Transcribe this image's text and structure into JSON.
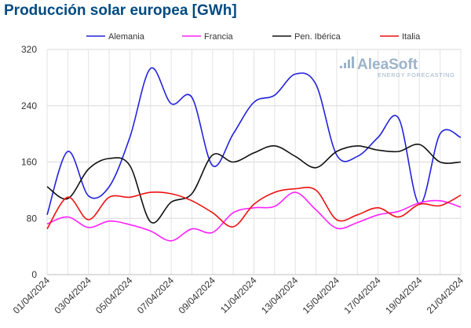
{
  "chart_data": {
    "type": "line",
    "title": "Producción solar europea [GWh]",
    "xlabel": "",
    "ylabel": "",
    "ylim": [
      0,
      320
    ],
    "yticks": [
      0,
      80,
      160,
      240,
      320
    ],
    "grid": true,
    "legend_position": "top",
    "x": [
      "01/04/2024",
      "02/04/2024",
      "03/04/2024",
      "04/04/2024",
      "05/04/2024",
      "06/04/2024",
      "07/04/2024",
      "08/04/2024",
      "09/04/2024",
      "10/04/2024",
      "11/04/2024",
      "12/04/2024",
      "13/04/2024",
      "14/04/2024",
      "15/04/2024",
      "16/04/2024",
      "17/04/2024",
      "18/04/2024",
      "19/04/2024",
      "20/04/2024",
      "21/04/2024"
    ],
    "xtick_labels": [
      "01/04/2024",
      "03/04/2024",
      "05/04/2024",
      "07/04/2024",
      "09/04/2024",
      "11/04/2024",
      "13/04/2024",
      "15/04/2024",
      "17/04/2024",
      "19/04/2024",
      "21/04/2024"
    ],
    "series": [
      {
        "name": "Alemania",
        "color": "#2222dd",
        "values": [
          85,
          175,
          112,
          125,
          195,
          293,
          243,
          252,
          155,
          200,
          245,
          255,
          285,
          270,
          170,
          168,
          195,
          222,
          100,
          200,
          195
        ]
      },
      {
        "name": "Francia",
        "color": "#ff22ff",
        "values": [
          72,
          82,
          67,
          76,
          71,
          62,
          48,
          65,
          60,
          88,
          95,
          97,
          117,
          92,
          66,
          74,
          85,
          90,
          102,
          105,
          96
        ]
      },
      {
        "name": "Pen. Ibérica",
        "color": "#111111",
        "values": [
          125,
          108,
          150,
          165,
          155,
          75,
          103,
          115,
          170,
          160,
          173,
          183,
          168,
          152,
          175,
          183,
          177,
          175,
          185,
          160,
          160
        ]
      },
      {
        "name": "Italia",
        "color": "#ee1111",
        "values": [
          65,
          110,
          78,
          110,
          110,
          117,
          115,
          105,
          88,
          68,
          100,
          117,
          122,
          120,
          78,
          85,
          95,
          82,
          100,
          98,
          113
        ]
      }
    ]
  },
  "brand": {
    "name": "AleaSoft",
    "tagline": "ENERGY FORECASTING"
  }
}
